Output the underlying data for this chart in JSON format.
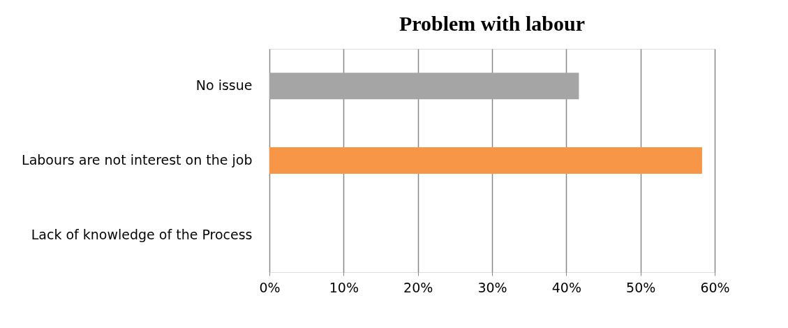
{
  "chart_data": {
    "type": "bar",
    "orientation": "horizontal",
    "title": "Problem with labour",
    "categories": [
      "No issue",
      "Labours are not interest on the job",
      "Lack of knowledge of the Process"
    ],
    "values": [
      41.7,
      58.3,
      0
    ],
    "colors": [
      "#a5a5a5",
      "#f79646",
      "#4f81bd"
    ],
    "xlim": [
      0,
      60
    ],
    "xticks": [
      {
        "value": 0,
        "label": "0%"
      },
      {
        "value": 10,
        "label": "10%"
      },
      {
        "value": 20,
        "label": "20%"
      },
      {
        "value": 30,
        "label": "30%"
      },
      {
        "value": 40,
        "label": "40%"
      },
      {
        "value": 50,
        "label": "50%"
      },
      {
        "value": 60,
        "label": "60%"
      }
    ],
    "grid": "x",
    "legend": false
  }
}
